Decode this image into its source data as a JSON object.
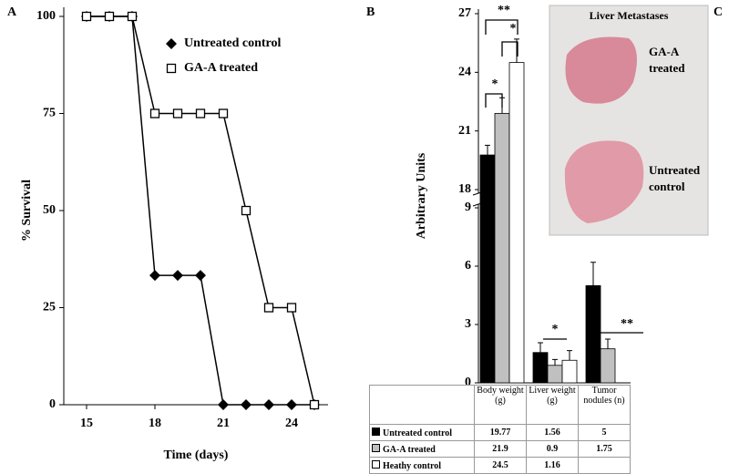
{
  "panel_labels": [
    "A",
    "B",
    "C"
  ],
  "chart_data": [
    {
      "type": "line",
      "x": [
        15,
        16,
        17,
        18,
        19,
        20,
        21,
        22,
        23,
        24,
        25
      ],
      "series": [
        {
          "name": "Untreated control",
          "color": "#000000",
          "marker": "diamond",
          "values": [
            100,
            100,
            100,
            33.3,
            33.3,
            33.3,
            0,
            0,
            0,
            0,
            0
          ]
        },
        {
          "name": "GA-A treated",
          "color": "#000000",
          "marker": "square",
          "values": [
            100,
            100,
            100,
            75,
            75,
            75,
            75,
            50,
            25,
            25,
            0
          ]
        }
      ],
      "xlim": [
        14,
        25.6
      ],
      "ylim": [
        0,
        100
      ],
      "xticks": [
        15,
        18,
        21,
        24
      ],
      "yticks": [
        0,
        25,
        50,
        75,
        100
      ],
      "xlabel": "Time (days)",
      "ylabel": "% Survival"
    },
    {
      "type": "bar",
      "categories": [
        "Body weight (g)",
        "Liver weight (g)",
        "Tumor nodules (n)"
      ],
      "series": [
        {
          "name": "Untreated control",
          "color": "#000000",
          "values": [
            19.77,
            1.56,
            5
          ],
          "errors": [
            0.5,
            0.5,
            1.2
          ]
        },
        {
          "name": "GA-A treated",
          "color": "#c0c0c0",
          "values": [
            21.9,
            0.9,
            1.75
          ],
          "errors": [
            0.8,
            0.3,
            0.5
          ]
        },
        {
          "name": "Heathy control",
          "color": "#ffffff",
          "values": [
            24.5,
            1.16,
            null
          ],
          "errors": [
            1.2,
            0.5,
            null
          ]
        }
      ],
      "ylim": [
        0,
        27
      ],
      "axis_break": [
        9,
        18
      ],
      "yticks": [
        0,
        3,
        6,
        9,
        18,
        21,
        24,
        27
      ],
      "ylabel": "Arbitrary Units",
      "annotations": [
        "**",
        "*",
        "*",
        "*",
        "**"
      ]
    }
  ],
  "image_panel": {
    "title": "Liver Metastases",
    "labels": [
      "GA-A treated",
      "Untreated control"
    ]
  }
}
